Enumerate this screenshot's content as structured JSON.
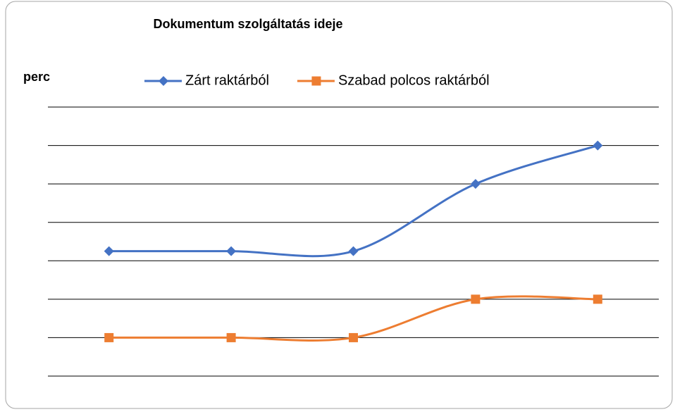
{
  "chart_data": {
    "type": "line",
    "title": "Dokumentum szolgáltatás ideje",
    "y_label": "perc",
    "categories": [
      null,
      null,
      null,
      null,
      null
    ],
    "series": [
      {
        "name": "Zárt raktárból",
        "color": "#4472c4",
        "marker": "diamond",
        "values": [
          3.25,
          3.25,
          3.25,
          5,
          6
        ]
      },
      {
        "name": "Szabad polcos raktárból",
        "color": "#ed7d31",
        "marker": "square",
        "values": [
          1,
          1,
          1,
          2,
          2
        ]
      }
    ],
    "ylim": [
      0,
      7
    ],
    "yticks": [
      0,
      1,
      2,
      3,
      4,
      5,
      6,
      7
    ],
    "grid": true,
    "smooth": true,
    "legend": "top"
  }
}
